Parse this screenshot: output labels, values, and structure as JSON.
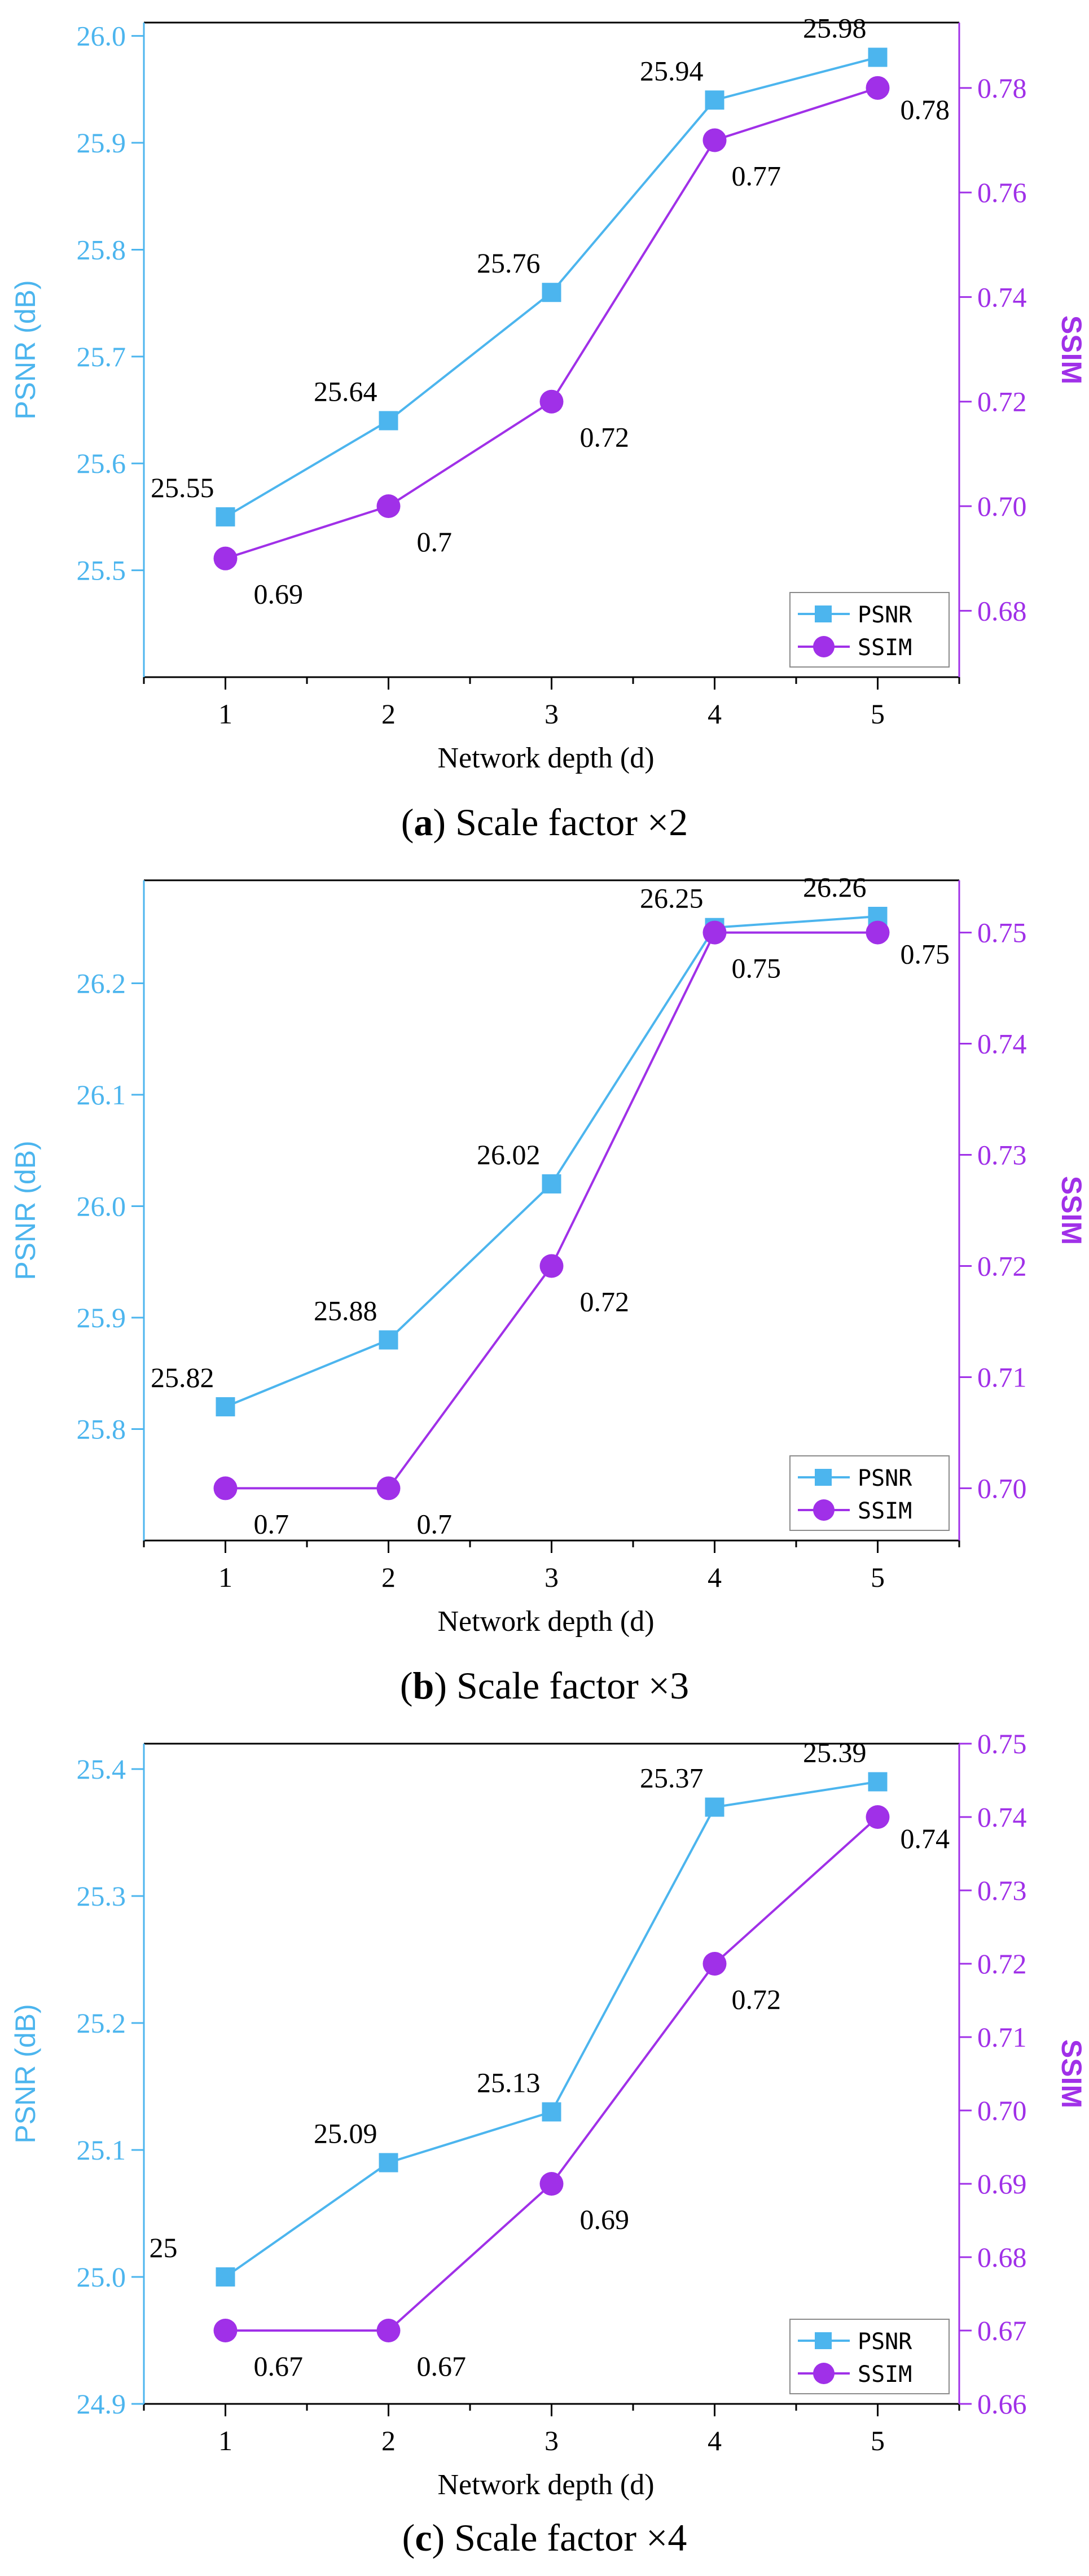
{
  "figure": {
    "captions": [
      {
        "letter": "a",
        "text": "Scale factor ×2"
      },
      {
        "letter": "b",
        "text": "Scale factor ×3"
      },
      {
        "letter": "c",
        "text": "Scale factor ×4"
      }
    ]
  },
  "colors": {
    "psnr": "#4CB5EE",
    "ssim": "#A030E8",
    "axis": "#000000"
  },
  "chart_data": [
    {
      "type": "line",
      "title": "",
      "xlabel": "Network depth (d)",
      "ylabel": "PSNR (dB)",
      "y2label": "SSIM",
      "x": [
        1,
        2,
        3,
        4,
        5
      ],
      "xlim": [
        0.5,
        5.5
      ],
      "ylim": [
        25.4,
        26.0125
      ],
      "yticks": [
        25.5,
        25.6,
        25.7,
        25.8,
        25.9,
        26.0
      ],
      "ytick_labels": [
        "25.5",
        "25.6",
        "25.7",
        "25.8",
        "25.9",
        "26.0"
      ],
      "y2lim": [
        0.6673,
        0.7925
      ],
      "y2ticks": [
        0.68,
        0.7,
        0.72,
        0.74,
        0.76,
        0.78
      ],
      "y2tick_labels": [
        "0.68",
        "0.70",
        "0.72",
        "0.74",
        "0.76",
        "0.78"
      ],
      "legend_position": "bottom-right",
      "series": [
        {
          "name": "PSNR",
          "axis": "left",
          "marker": "square",
          "values": [
            25.55,
            25.64,
            25.76,
            25.94,
            25.98
          ],
          "labels": [
            "25.55",
            "25.64",
            "25.76",
            "25.94",
            "25.98"
          ]
        },
        {
          "name": "SSIM",
          "axis": "right",
          "marker": "circle",
          "values": [
            0.69,
            0.7,
            0.72,
            0.77,
            0.78
          ],
          "labels": [
            "0.69",
            "0.7",
            "0.72",
            "0.77",
            "0.78"
          ]
        }
      ]
    },
    {
      "type": "line",
      "title": "",
      "xlabel": "Network depth (d)",
      "ylabel": "PSNR (dB)",
      "y2label": "SSIM",
      "x": [
        1,
        2,
        3,
        4,
        5
      ],
      "xlim": [
        0.5,
        5.5
      ],
      "ylim": [
        25.7,
        26.2924
      ],
      "yticks": [
        25.8,
        25.9,
        26.0,
        26.1,
        26.2
      ],
      "ytick_labels": [
        "25.8",
        "25.9",
        "26.0",
        "26.1",
        "26.2"
      ],
      "y2lim": [
        0.6953,
        0.7547
      ],
      "y2ticks": [
        0.7,
        0.71,
        0.72,
        0.73,
        0.74,
        0.75
      ],
      "y2tick_labels": [
        "0.70",
        "0.71",
        "0.72",
        "0.73",
        "0.74",
        "0.75"
      ],
      "legend_position": "bottom-right",
      "series": [
        {
          "name": "PSNR",
          "axis": "left",
          "marker": "square",
          "values": [
            25.82,
            25.88,
            26.02,
            26.25,
            26.26
          ],
          "labels": [
            "25.82",
            "25.88",
            "26.02",
            "26.25",
            "26.26"
          ]
        },
        {
          "name": "SSIM",
          "axis": "right",
          "marker": "circle",
          "values": [
            0.7,
            0.7,
            0.72,
            0.75,
            0.75
          ],
          "labels": [
            "0.7",
            "0.7",
            "0.72",
            "0.75",
            "0.75"
          ]
        }
      ]
    },
    {
      "type": "line",
      "title": "",
      "xlabel": "Network depth (d)",
      "ylabel": "PSNR (dB)",
      "y2label": "SSIM",
      "x": [
        1,
        2,
        3,
        4,
        5
      ],
      "xlim": [
        0.5,
        5.5
      ],
      "ylim": [
        24.9,
        25.42
      ],
      "yticks": [
        24.9,
        25.0,
        25.1,
        25.2,
        25.3,
        25.4
      ],
      "ytick_labels": [
        "24.9",
        "25.0",
        "25.1",
        "25.2",
        "25.3",
        "25.4"
      ],
      "y2lim": [
        0.66,
        0.75
      ],
      "y2ticks": [
        0.66,
        0.67,
        0.68,
        0.69,
        0.7,
        0.71,
        0.72,
        0.73,
        0.74,
        0.75
      ],
      "y2tick_labels": [
        "0.66",
        "0.67",
        "0.68",
        "0.69",
        "0.70",
        "0.71",
        "0.72",
        "0.73",
        "0.74",
        "0.75"
      ],
      "legend_position": "bottom-right",
      "series": [
        {
          "name": "PSNR",
          "axis": "left",
          "marker": "square",
          "values": [
            25.0,
            25.09,
            25.13,
            25.37,
            25.39
          ],
          "labels": [
            "25",
            "25.09",
            "25.13",
            "25.37",
            "25.39"
          ]
        },
        {
          "name": "SSIM",
          "axis": "right",
          "marker": "circle",
          "values": [
            0.67,
            0.67,
            0.69,
            0.72,
            0.74
          ],
          "labels": [
            "0.67",
            "0.67",
            "0.69",
            "0.72",
            "0.74"
          ]
        }
      ]
    }
  ]
}
